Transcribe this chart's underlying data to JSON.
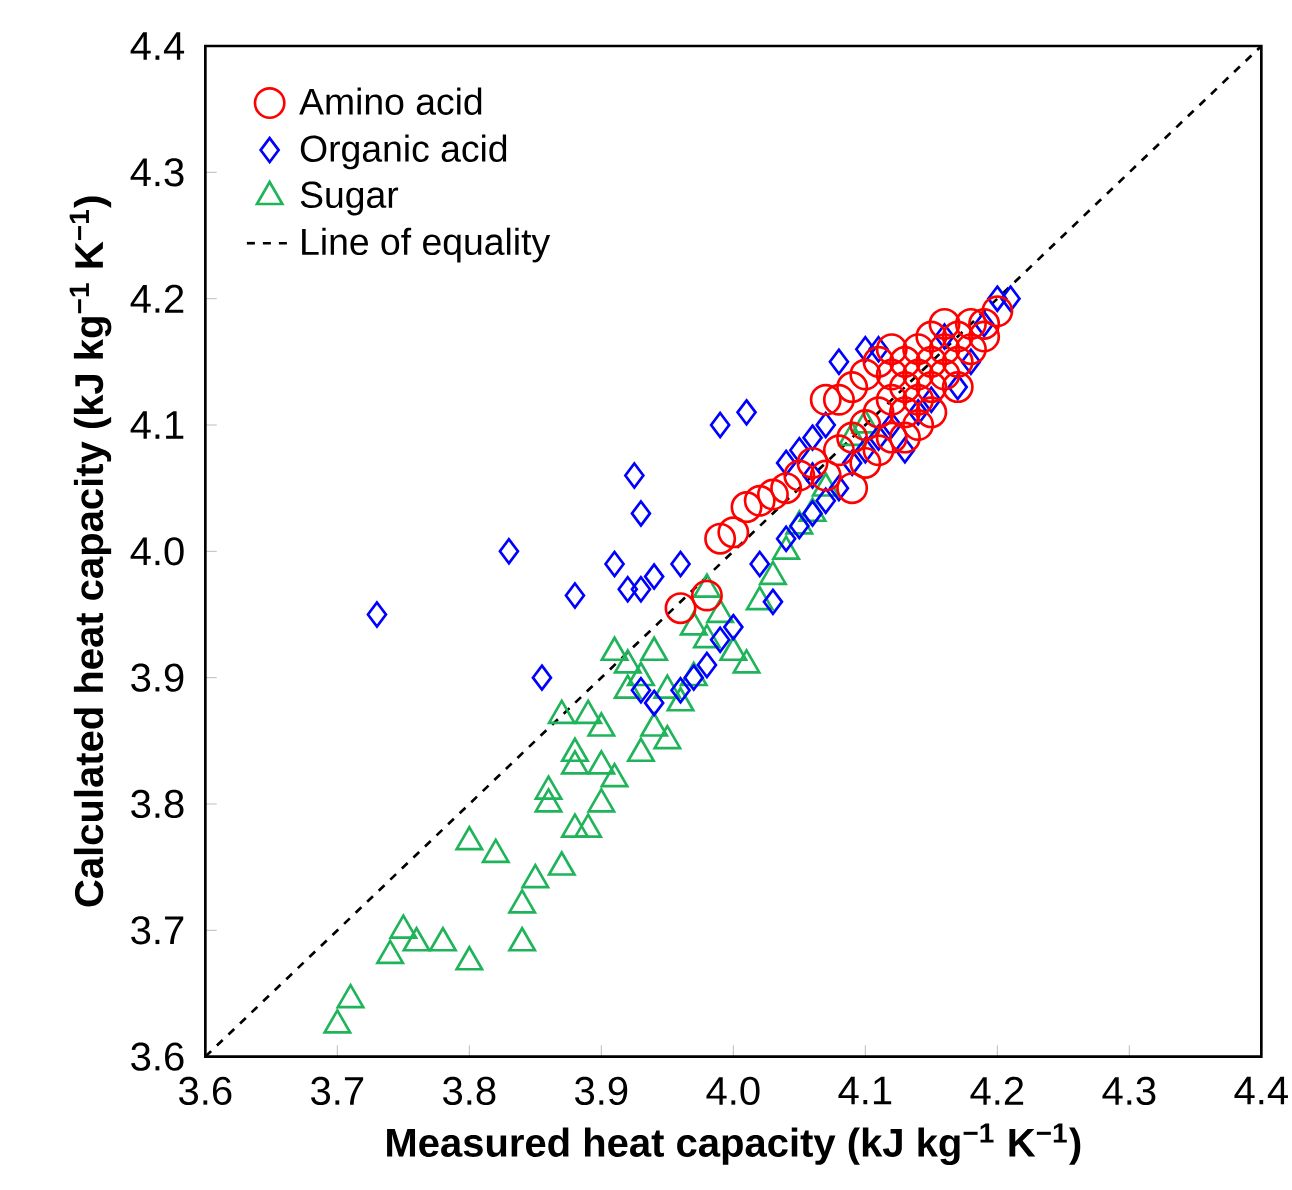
{
  "chart_data": {
    "type": "scatter",
    "xlabel": "Measured heat capacity (kJ kg$^{−1}$ K$^{−1}$)",
    "ylabel": "Calculated heat capacity (kJ kg$^{−1}$ K$^{−1}$)",
    "xlim": [
      3.6,
      4.4
    ],
    "ylim": [
      3.6,
      4.4
    ],
    "xticks": [
      3.6,
      3.7,
      3.8,
      3.9,
      {
        "value": 4.0,
        "label": "4.0"
      },
      4.1,
      4.2,
      4.3,
      4.4
    ],
    "yticks": [
      3.6,
      3.7,
      3.8,
      3.9,
      {
        "value": 4.0,
        "label": "4.0"
      },
      4.1,
      4.2,
      4.3,
      4.4
    ],
    "grid": false,
    "legend": "top left",
    "series": [
      {
        "name": "Amino acid",
        "color": "#ff0000",
        "marker": "circle",
        "x": [
          3.96,
          3.98,
          3.99,
          4.0,
          4.02,
          4.03,
          4.01,
          4.04,
          4.05,
          4.06,
          4.07,
          4.08,
          4.07,
          4.08,
          4.09,
          4.09,
          4.1,
          4.1,
          4.11,
          4.11,
          4.12,
          4.12,
          4.12,
          4.13,
          4.13,
          4.13,
          4.14,
          4.14,
          4.14,
          4.15,
          4.15,
          4.15,
          4.16,
          4.16,
          4.16,
          4.17,
          4.17,
          4.18,
          4.18,
          4.19,
          4.19,
          4.2,
          4.11,
          4.12,
          4.14,
          4.1,
          4.09,
          4.15,
          4.17,
          4.13
        ],
        "values": [
          3.955,
          3.965,
          4.01,
          4.015,
          4.04,
          4.045,
          4.035,
          4.05,
          4.06,
          4.07,
          4.06,
          4.08,
          4.12,
          4.12,
          4.09,
          4.13,
          4.1,
          4.14,
          4.11,
          4.15,
          4.12,
          4.14,
          4.16,
          4.11,
          4.13,
          4.15,
          4.12,
          4.14,
          4.16,
          4.13,
          4.15,
          4.17,
          4.14,
          4.16,
          4.18,
          4.15,
          4.17,
          4.16,
          4.18,
          4.18,
          4.17,
          4.19,
          4.08,
          4.09,
          4.1,
          4.07,
          4.05,
          4.11,
          4.13,
          4.09
        ]
      },
      {
        "name": "Organic acid",
        "color": "#0000ff",
        "marker": "diamond",
        "x": [
          3.73,
          3.83,
          3.855,
          3.88,
          3.91,
          3.925,
          3.93,
          3.92,
          3.93,
          3.94,
          3.96,
          3.99,
          4.01,
          3.96,
          3.97,
          3.98,
          3.99,
          4.0,
          3.93,
          3.94,
          4.03,
          4.04,
          4.05,
          4.06,
          4.07,
          4.06,
          4.07,
          4.08,
          4.09,
          4.1,
          4.11,
          4.12,
          4.13,
          4.08,
          4.1,
          4.11,
          4.17,
          4.18,
          4.19,
          4.2,
          4.21,
          4.16,
          4.05,
          4.04,
          4.02,
          4.06,
          4.14,
          4.15
        ],
        "values": [
          3.95,
          4.0,
          3.9,
          3.965,
          3.99,
          4.06,
          4.03,
          3.97,
          3.97,
          3.98,
          3.99,
          4.1,
          4.11,
          3.89,
          3.9,
          3.91,
          3.93,
          3.94,
          3.89,
          3.88,
          3.96,
          4.07,
          4.08,
          4.09,
          4.1,
          4.03,
          4.04,
          4.05,
          4.07,
          4.08,
          4.09,
          4.1,
          4.08,
          4.15,
          4.16,
          4.16,
          4.13,
          4.15,
          4.18,
          4.2,
          4.2,
          4.17,
          4.02,
          4.01,
          3.99,
          4.06,
          4.11,
          4.12
        ]
      },
      {
        "name": "Sugar",
        "color": "#1fb45a",
        "marker": "triangle",
        "x": [
          3.7,
          3.71,
          3.75,
          3.74,
          3.76,
          3.78,
          3.8,
          3.8,
          3.82,
          3.84,
          3.84,
          3.85,
          3.86,
          3.86,
          3.87,
          3.88,
          3.89,
          3.88,
          3.88,
          3.87,
          3.89,
          3.9,
          3.9,
          3.9,
          3.91,
          3.91,
          3.92,
          3.93,
          3.93,
          3.94,
          3.95,
          3.95,
          3.96,
          3.97,
          3.97,
          3.98,
          3.99,
          3.98,
          4.0,
          4.01,
          4.02,
          4.03,
          4.04,
          4.05,
          4.06,
          4.07,
          4.09,
          4.1,
          3.92,
          3.94
        ],
        "values": [
          3.625,
          3.645,
          3.7,
          3.68,
          3.69,
          3.69,
          3.675,
          3.77,
          3.76,
          3.72,
          3.69,
          3.74,
          3.81,
          3.8,
          3.75,
          3.78,
          3.78,
          3.84,
          3.83,
          3.87,
          3.87,
          3.86,
          3.83,
          3.8,
          3.82,
          3.92,
          3.89,
          3.9,
          3.84,
          3.86,
          3.85,
          3.89,
          3.88,
          3.9,
          3.94,
          3.93,
          3.95,
          3.97,
          3.92,
          3.91,
          3.96,
          3.98,
          4.0,
          4.02,
          4.03,
          4.05,
          4.09,
          4.1,
          3.91,
          3.92
        ]
      },
      {
        "name": "Line of equality",
        "type": "line",
        "color": "#000000",
        "marker": "none",
        "line_style": "dashed",
        "x": [
          3.6,
          4.4
        ],
        "values": [
          3.6,
          4.4
        ]
      }
    ]
  }
}
